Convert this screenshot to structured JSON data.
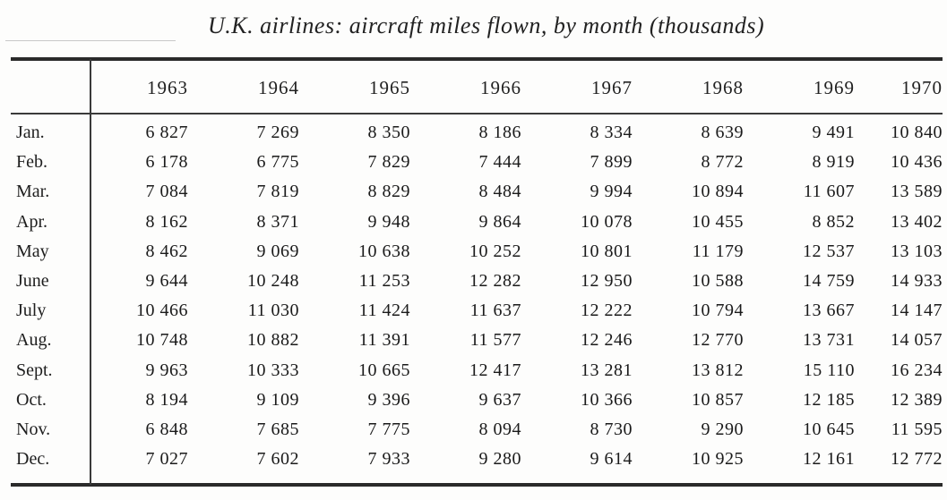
{
  "title": "U.K. airlines: aircraft miles flown, by month (thousands)",
  "table": {
    "years": [
      "1963",
      "1964",
      "1965",
      "1966",
      "1967",
      "1968",
      "1969",
      "1970"
    ],
    "rows": [
      {
        "month": "Jan.",
        "values": [
          "6 827",
          "7 269",
          "8 350",
          "8 186",
          "8 334",
          "8 639",
          "9 491",
          "10 840"
        ]
      },
      {
        "month": "Feb.",
        "values": [
          "6 178",
          "6 775",
          "7 829",
          "7 444",
          "7 899",
          "8 772",
          "8 919",
          "10 436"
        ]
      },
      {
        "month": "Mar.",
        "values": [
          "7 084",
          "7 819",
          "8 829",
          "8 484",
          "9 994",
          "10 894",
          "11 607",
          "13 589"
        ]
      },
      {
        "month": "Apr.",
        "values": [
          "8 162",
          "8 371",
          "9 948",
          "9 864",
          "10 078",
          "10 455",
          "8 852",
          "13 402"
        ]
      },
      {
        "month": "May",
        "values": [
          "8 462",
          "9 069",
          "10 638",
          "10 252",
          "10 801",
          "11 179",
          "12 537",
          "13 103"
        ]
      },
      {
        "month": "June",
        "values": [
          "9 644",
          "10 248",
          "11 253",
          "12 282",
          "12 950",
          "10 588",
          "14 759",
          "14 933"
        ]
      },
      {
        "month": "July",
        "values": [
          "10 466",
          "11 030",
          "11 424",
          "11 637",
          "12 222",
          "10 794",
          "13 667",
          "14 147"
        ]
      },
      {
        "month": "Aug.",
        "values": [
          "10 748",
          "10 882",
          "11 391",
          "11 577",
          "12 246",
          "12 770",
          "13 731",
          "14 057"
        ]
      },
      {
        "month": "Sept.",
        "values": [
          "9 963",
          "10 333",
          "10 665",
          "12 417",
          "13 281",
          "13 812",
          "15 110",
          "16 234"
        ]
      },
      {
        "month": "Oct.",
        "values": [
          "8 194",
          "9 109",
          "9 396",
          "9 637",
          "10 366",
          "10 857",
          "12 185",
          "12 389"
        ]
      },
      {
        "month": "Nov.",
        "values": [
          "6 848",
          "7 685",
          "7 775",
          "8 094",
          "8 730",
          "9 290",
          "10 645",
          "11 595"
        ]
      },
      {
        "month": "Dec.",
        "values": [
          "7 027",
          "7 602",
          "7 933",
          "9 280",
          "9 614",
          "10 925",
          "12 161",
          "12 772"
        ]
      }
    ]
  }
}
